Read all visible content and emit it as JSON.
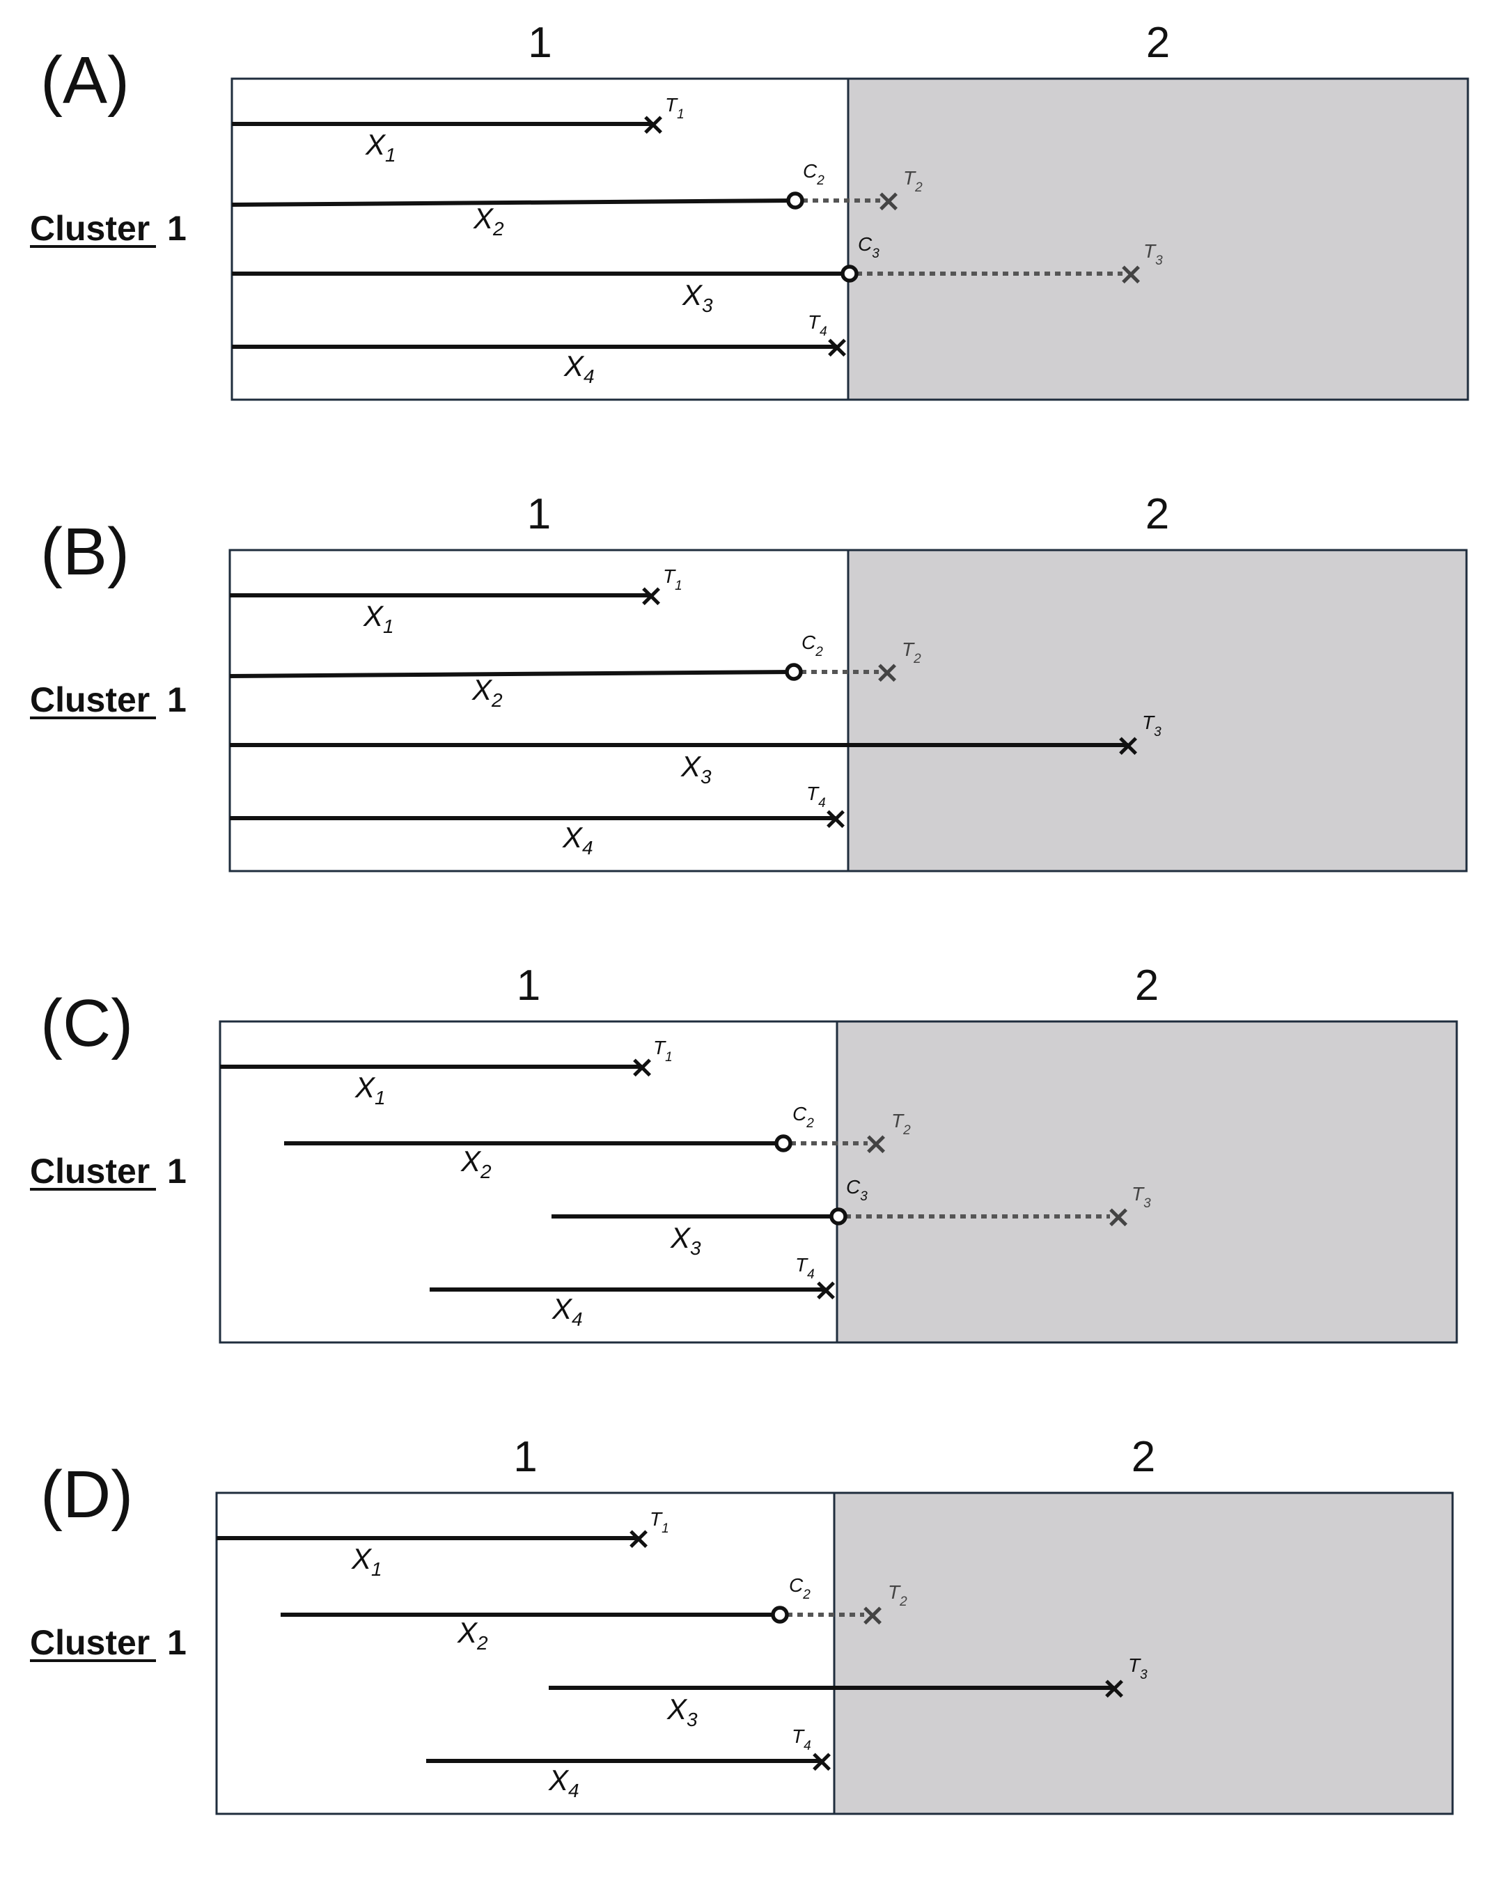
{
  "periods": [
    "1",
    "2"
  ],
  "cluster_label": {
    "word": "Cluster",
    "number": "1"
  },
  "panels": [
    {
      "letter": "(A)",
      "subjects": [
        {
          "x_label": "X",
          "x_sub": "1",
          "event": "T",
          "event_sub": "1",
          "censor": null,
          "censor_sub": null,
          "mode": "event"
        },
        {
          "x_label": "X",
          "x_sub": "2",
          "event": "T",
          "event_sub": "2",
          "censor": "C",
          "censor_sub": "2",
          "mode": "censored"
        },
        {
          "x_label": "X",
          "x_sub": "3",
          "event": "T",
          "event_sub": "3",
          "censor": "C",
          "censor_sub": "3",
          "mode": "censored"
        },
        {
          "x_label": "X",
          "x_sub": "4",
          "event": "T",
          "event_sub": "4",
          "censor": null,
          "censor_sub": null,
          "mode": "event"
        }
      ]
    },
    {
      "letter": "(B)",
      "subjects": [
        {
          "x_label": "X",
          "x_sub": "1",
          "event": "T",
          "event_sub": "1",
          "censor": null,
          "censor_sub": null,
          "mode": "event"
        },
        {
          "x_label": "X",
          "x_sub": "2",
          "event": "T",
          "event_sub": "2",
          "censor": "C",
          "censor_sub": "2",
          "mode": "censored"
        },
        {
          "x_label": "X",
          "x_sub": "3",
          "event": "T",
          "event_sub": "3",
          "censor": null,
          "censor_sub": null,
          "mode": "event"
        },
        {
          "x_label": "X",
          "x_sub": "4",
          "event": "T",
          "event_sub": "4",
          "censor": null,
          "censor_sub": null,
          "mode": "event"
        }
      ]
    },
    {
      "letter": "(C)",
      "subjects": [
        {
          "x_label": "X",
          "x_sub": "1",
          "event": "T",
          "event_sub": "1",
          "censor": null,
          "censor_sub": null,
          "mode": "event"
        },
        {
          "x_label": "X",
          "x_sub": "2",
          "event": "T",
          "event_sub": "2",
          "censor": "C",
          "censor_sub": "2",
          "mode": "censored"
        },
        {
          "x_label": "X",
          "x_sub": "3",
          "event": "T",
          "event_sub": "3",
          "censor": "C",
          "censor_sub": "3",
          "mode": "censored"
        },
        {
          "x_label": "X",
          "x_sub": "4",
          "event": "T",
          "event_sub": "4",
          "censor": null,
          "censor_sub": null,
          "mode": "event"
        }
      ]
    },
    {
      "letter": "(D)",
      "subjects": [
        {
          "x_label": "X",
          "x_sub": "1",
          "event": "T",
          "event_sub": "1",
          "censor": null,
          "censor_sub": null,
          "mode": "event"
        },
        {
          "x_label": "X",
          "x_sub": "2",
          "event": "T",
          "event_sub": "2",
          "censor": "C",
          "censor_sub": "2",
          "mode": "censored"
        },
        {
          "x_label": "X",
          "x_sub": "3",
          "event": "T",
          "event_sub": "3",
          "censor": null,
          "censor_sub": null,
          "mode": "event"
        },
        {
          "x_label": "X",
          "x_sub": "4",
          "event": "T",
          "event_sub": "4",
          "censor": null,
          "censor_sub": null,
          "mode": "event"
        }
      ]
    }
  ],
  "colors": {
    "period2_shading": "#d0cfd1",
    "box_border": "#1f2d3d",
    "line": "#111111",
    "dotted": "#555555"
  }
}
